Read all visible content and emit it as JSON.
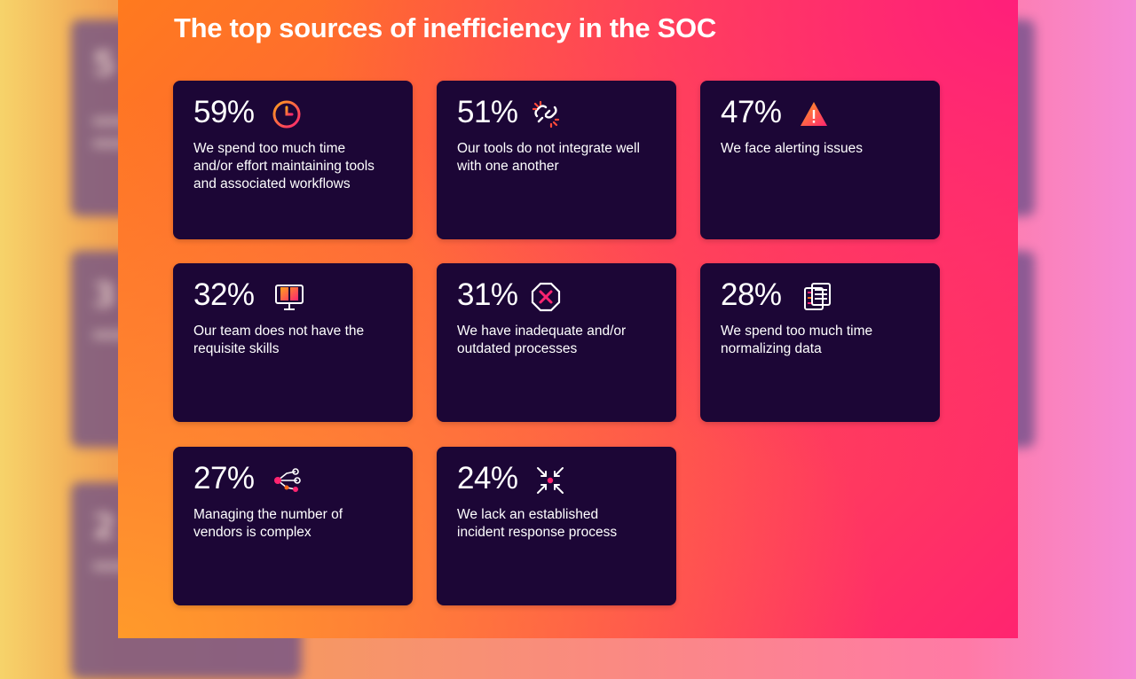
{
  "title": "The top sources of inefficiency in the SOC",
  "colors": {
    "card_bg": "#1c0636",
    "accent_orange": "#ff6a1a",
    "accent_pink": "#ff2470",
    "text": "#ffffff"
  },
  "chart_data": {
    "type": "table",
    "title": "The top sources of inefficiency in the SOC",
    "items": [
      {
        "value": "59%",
        "percent": 59,
        "label": "We spend too much time and/or effort maintaining tools and associated workflows",
        "icon": "clock-icon"
      },
      {
        "value": "51%",
        "percent": 51,
        "label": "Our tools do not integrate well with one another",
        "icon": "broken-link-icon"
      },
      {
        "value": "47%",
        "percent": 47,
        "label": "We face alerting issues",
        "icon": "warning-icon"
      },
      {
        "value": "32%",
        "percent": 32,
        "label": "Our team does not have the requisite skills",
        "icon": "book-screen-icon"
      },
      {
        "value": "31%",
        "percent": 31,
        "label": "We have inadequate and/or outdated processes",
        "icon": "octagon-x-icon"
      },
      {
        "value": "28%",
        "percent": 28,
        "label": "We spend too much time normalizing data",
        "icon": "server-stack-icon"
      },
      {
        "value": "27%",
        "percent": 27,
        "label": "Managing the number of vendors is complex",
        "icon": "network-nodes-icon"
      },
      {
        "value": "24%",
        "percent": 24,
        "label": "We lack an established incident response process",
        "icon": "converging-arrows-icon"
      }
    ]
  }
}
